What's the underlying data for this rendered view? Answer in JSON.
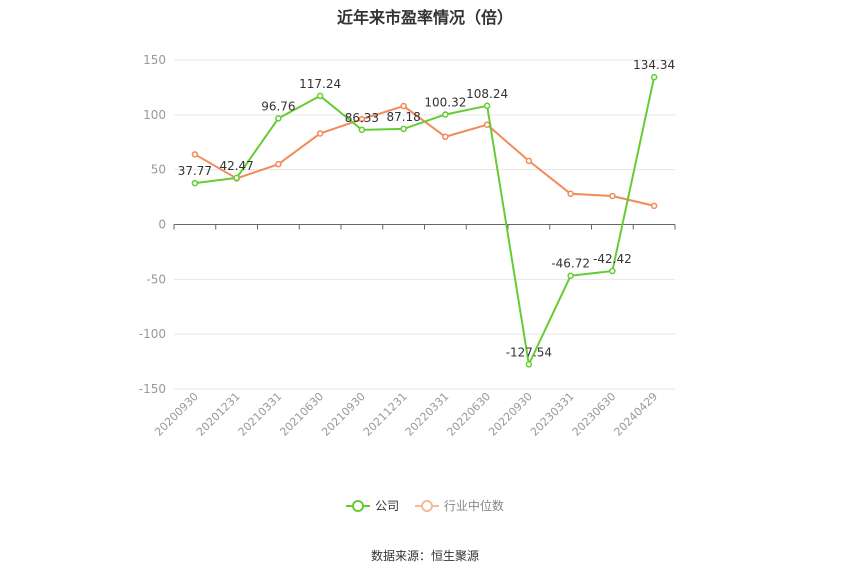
{
  "chart_data": {
    "type": "line",
    "title": "近年来市盈率情况（倍）",
    "categories": [
      "20200930",
      "20201231",
      "20210331",
      "20210630",
      "20210930",
      "20211231",
      "20220331",
      "20220630",
      "20220930",
      "20230331",
      "20230630",
      "20240429"
    ],
    "series": [
      {
        "name": "公司",
        "color": "#66cc33",
        "values": [
          37.77,
          42.47,
          96.76,
          117.24,
          86.33,
          87.18,
          100.32,
          108.24,
          -127.54,
          -46.72,
          -42.42,
          134.34
        ],
        "labels": [
          "37.77",
          "42.47",
          "96.76",
          "117.24",
          "86.33",
          "87.18",
          "100.32",
          "108.24",
          "-127.54",
          "-46.72",
          "-42.42",
          "134.34"
        ]
      },
      {
        "name": "行业中位数",
        "color": "#f28a5a",
        "values": [
          64,
          42,
          55,
          83,
          96,
          108,
          80,
          91,
          58,
          28,
          26,
          17
        ]
      }
    ],
    "ylim": [
      -150,
      150
    ],
    "yticks": [
      150,
      100,
      50,
      0,
      -50,
      -100,
      -150
    ],
    "ytick_labels": [
      "150",
      "100",
      "50",
      "0",
      "-50",
      "-100",
      "-150"
    ],
    "grid": true,
    "legend_position": "bottom"
  },
  "source": "数据来源：恒生聚源"
}
